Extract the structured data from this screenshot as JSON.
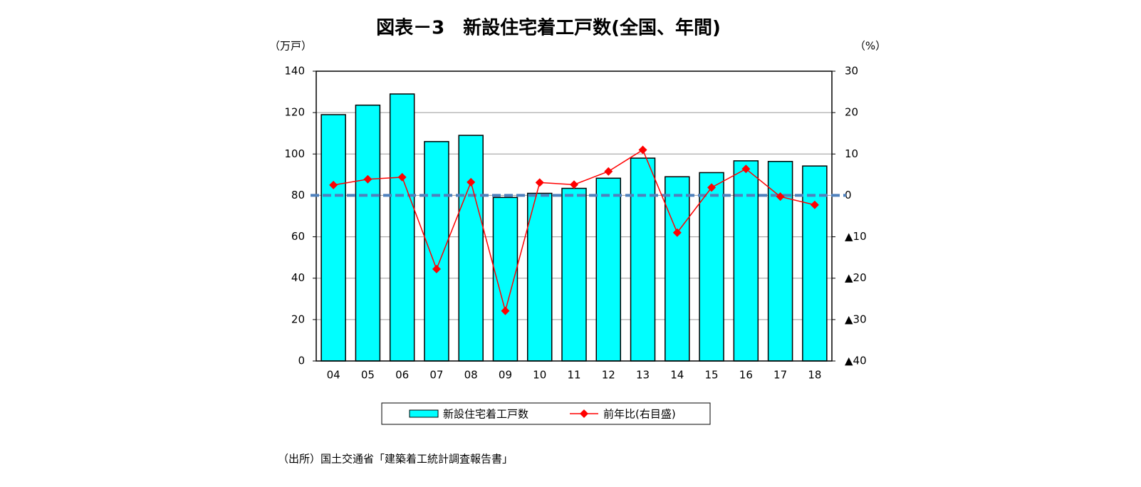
{
  "chart_data": {
    "type": "bar_line",
    "title": "図表－3　新設住宅着工戸数(全国、年間)",
    "y_label": "（万戸）",
    "y2_label": "（%）",
    "note": "（出所）国土交通省「建築着工統計調査報告書」",
    "categories": [
      "04",
      "05",
      "06",
      "07",
      "08",
      "09",
      "10",
      "11",
      "12",
      "13",
      "14",
      "15",
      "16",
      "17",
      "18"
    ],
    "series": [
      {
        "name": "新設住宅着工戸数",
        "type": "bar",
        "color": "#00ffff",
        "values": [
          119,
          123.6,
          129,
          106,
          109,
          79,
          81,
          83.4,
          88.3,
          98,
          89,
          91,
          96.7,
          96.4,
          94.2
        ]
      },
      {
        "name": "前年比(右目盛)",
        "type": "line",
        "axis": "y2",
        "color": "#ff0000",
        "values": [
          2.5,
          3.9,
          4.4,
          -17.8,
          3.2,
          -27.9,
          3.1,
          2.6,
          5.8,
          11.0,
          -9.0,
          1.9,
          6.4,
          -0.3,
          -2.3
        ]
      }
    ],
    "ylim": [
      0,
      140
    ],
    "yticks": [
      0,
      20,
      40,
      60,
      80,
      100,
      120,
      140
    ],
    "y2lim": [
      -40,
      30
    ],
    "y2ticks": [
      {
        "value": -40,
        "label": "▲40"
      },
      {
        "value": -30,
        "label": "▲30"
      },
      {
        "value": -20,
        "label": "▲20"
      },
      {
        "value": -10,
        "label": "▲10"
      },
      0,
      10,
      20,
      30
    ],
    "reference_line": {
      "axis": "y2",
      "value": 0,
      "color": "#4f81bd"
    },
    "grid": true,
    "legend": "bottom"
  }
}
